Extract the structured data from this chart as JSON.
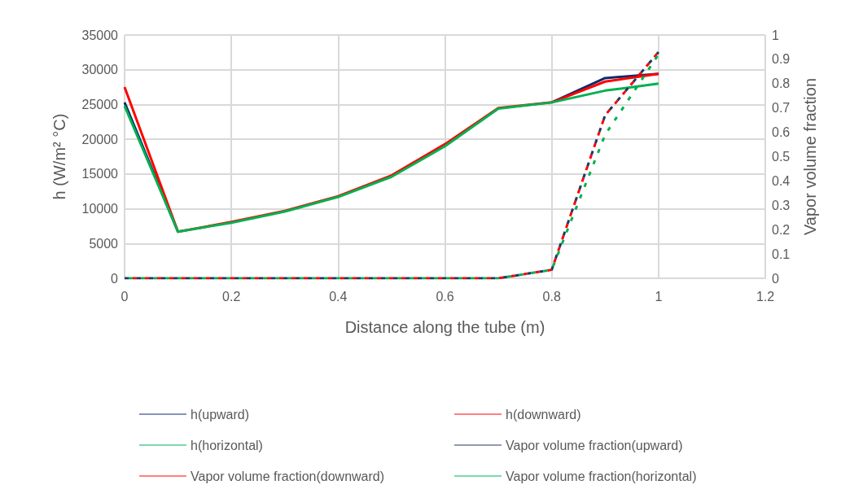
{
  "chart_data": {
    "type": "line",
    "xlabel": "Distance along the tube (m)",
    "ylabel": "h (W/m² °C)",
    "y2label": "Vapor volume fraction",
    "x": [
      0,
      0.1,
      0.2,
      0.3,
      0.4,
      0.5,
      0.6,
      0.7,
      0.8,
      0.9,
      1
    ],
    "series": [
      {
        "name": "h(upward)",
        "color": "#0e2a6b",
        "values": [
          25300,
          6700,
          null,
          null,
          null,
          null,
          null,
          null,
          25300,
          28800,
          29400
        ]
      },
      {
        "name": "h(downward)",
        "color": "#ff0000",
        "values": [
          27500,
          6700,
          8100,
          9700,
          11800,
          14800,
          19300,
          24500,
          25300,
          28300,
          29400
        ]
      },
      {
        "name": "h(horizontal)",
        "color": "#00b050",
        "values": [
          24800,
          6700,
          8000,
          9600,
          11700,
          14600,
          19000,
          24400,
          25300,
          27000,
          28000
        ]
      },
      {
        "name": "Vapor volume fraction(upward)",
        "color": "#203864",
        "axis": "y2",
        "line_style": "dashed",
        "values": [
          0,
          0,
          0,
          0,
          0,
          0,
          0,
          0,
          0.035,
          0.67,
          0.93
        ]
      },
      {
        "name": "Vapor volume fraction(downward)",
        "color": "#ff0000",
        "axis": "y2",
        "line_style": "dashed",
        "values": [
          0,
          0,
          0,
          0,
          0,
          0,
          0,
          0,
          0.035,
          0.67,
          0.93
        ]
      },
      {
        "name": "Vapor volume fraction(horizontal)",
        "color": "#00b050",
        "axis": "y2",
        "line_style": "dashed",
        "values": [
          0,
          0,
          0,
          0,
          0,
          0,
          0,
          0,
          0.035,
          0.59,
          0.92
        ]
      }
    ],
    "xlim": [
      0,
      1.2
    ],
    "xticks": [
      0,
      0.2,
      0.4,
      0.6,
      0.8,
      1,
      1.2
    ],
    "ylim": [
      0,
      35000
    ],
    "yticks": [
      0,
      5000,
      10000,
      15000,
      20000,
      25000,
      30000,
      35000
    ],
    "y2lim": [
      0,
      1
    ],
    "y2ticks": [
      0,
      0.1,
      0.2,
      0.3,
      0.4,
      0.5,
      0.6,
      0.7,
      0.8,
      0.9,
      1
    ],
    "grid": true,
    "legend": "bottom",
    "marker": "none",
    "line_style": "solid"
  }
}
